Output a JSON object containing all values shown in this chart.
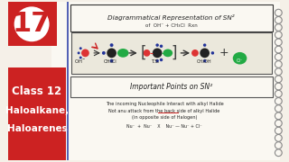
{
  "bg_color": "#f5f0e8",
  "notebook_bg": "#faf8f2",
  "red_box_color": "#cc2222",
  "number_text": "17",
  "title_top": "Diagrammatical Representation of SN²",
  "title_sub": "of  OH⁻ + CH₃Cl  Rxn",
  "section_title": "Important Points on SN²",
  "bottom_red_bg": "#cc2222",
  "bottom_line1": "Class 12",
  "bottom_line2": "Haloalkane,",
  "bottom_line3": "Haloarenes",
  "body_line1": "The incoming Nucleophile Interact with alkyl Halide",
  "body_line2": "Not anu attack from the back side of alkyl Halide",
  "body_line3": "(in opposite side of Halogen)",
  "spiral_color": "#888888",
  "blue_line_color": "#3344aa",
  "reaction_box_color": "#555555"
}
